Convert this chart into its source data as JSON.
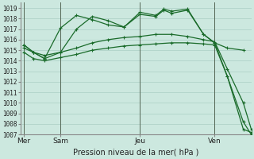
{
  "bg_color": "#cce8df",
  "grid_color": "#aacfc5",
  "line_color": "#1a6b2a",
  "line_color2": "#2d8a3e",
  "title": "Pression niveau de la mer( hPa )",
  "ylim": [
    1007,
    1019.5
  ],
  "xlim": [
    0,
    14.5
  ],
  "yticks": [
    1007,
    1008,
    1009,
    1010,
    1011,
    1012,
    1013,
    1014,
    1015,
    1016,
    1017,
    1018,
    1019
  ],
  "day_labels": [
    "Mer",
    "Sam",
    "Jeu",
    "Ven"
  ],
  "day_positions": [
    0.2,
    2.5,
    7.5,
    12.2
  ],
  "vline_positions": [
    0.2,
    2.5,
    7.5,
    12.2
  ],
  "series": [
    {
      "x": [
        0.2,
        0.8,
        1.5,
        2.5,
        3.5,
        4.5,
        5.5,
        6.5,
        7.5,
        8.5,
        9.0,
        9.5,
        10.5,
        11.5,
        12.2,
        13.0,
        14.0
      ],
      "y": [
        1015.5,
        1014.8,
        1014.2,
        1014.8,
        1017.0,
        1018.2,
        1017.8,
        1017.2,
        1018.4,
        1018.2,
        1018.8,
        1018.5,
        1018.8,
        1016.5,
        1015.7,
        1015.2,
        1015.0
      ]
    },
    {
      "x": [
        0.2,
        0.8,
        1.5,
        2.5,
        3.5,
        4.5,
        5.5,
        6.5,
        7.5,
        8.5,
        9.5,
        10.5,
        11.5,
        12.2,
        13.0,
        14.0,
        14.5
      ],
      "y": [
        1015.2,
        1014.8,
        1014.5,
        1014.8,
        1015.2,
        1015.7,
        1016.0,
        1016.2,
        1016.3,
        1016.5,
        1016.5,
        1016.3,
        1016.0,
        1015.8,
        1013.2,
        1010.0,
        1007.5
      ]
    },
    {
      "x": [
        0.2,
        0.8,
        1.5,
        2.5,
        3.5,
        4.5,
        5.5,
        6.5,
        7.5,
        8.5,
        9.5,
        10.5,
        11.5,
        12.2,
        13.0,
        14.0,
        14.5
      ],
      "y": [
        1014.8,
        1014.2,
        1014.0,
        1014.3,
        1014.6,
        1015.0,
        1015.2,
        1015.4,
        1015.5,
        1015.6,
        1015.7,
        1015.7,
        1015.6,
        1015.5,
        1012.5,
        1008.2,
        1007.0
      ]
    },
    {
      "x": [
        0.2,
        0.8,
        1.5,
        2.5,
        3.5,
        4.5,
        5.5,
        6.5,
        7.5,
        8.5,
        9.0,
        9.5,
        10.5,
        11.5,
        12.2,
        13.0,
        14.0,
        14.5
      ],
      "y": [
        1015.5,
        1014.8,
        1014.2,
        1017.1,
        1018.3,
        1017.9,
        1017.4,
        1017.2,
        1018.6,
        1018.3,
        1018.9,
        1018.7,
        1018.9,
        1016.5,
        1015.7,
        1012.5,
        1007.5,
        1007.2
      ]
    }
  ]
}
